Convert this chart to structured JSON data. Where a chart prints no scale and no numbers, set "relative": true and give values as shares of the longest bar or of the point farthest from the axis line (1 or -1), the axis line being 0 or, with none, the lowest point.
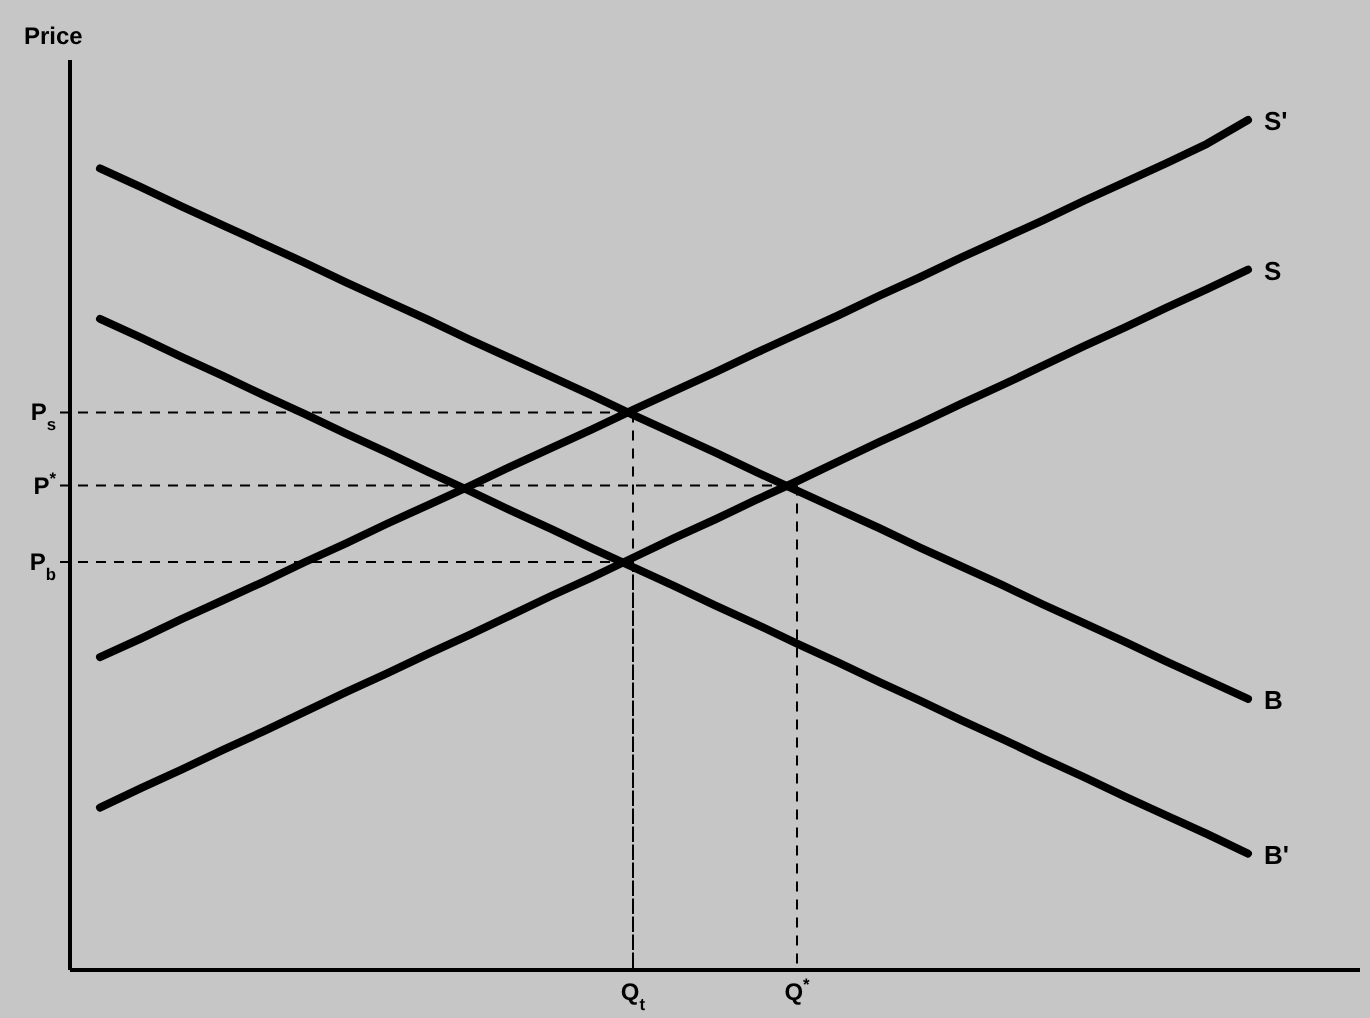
{
  "chart_data": {
    "type": "line",
    "relative": true,
    "ylabel": "Price",
    "categories": [
      null,
      null,
      null,
      null,
      null,
      null,
      null,
      null,
      null,
      null,
      null,
      null,
      null,
      "Q$_{t}$",
      null,
      null,
      null,
      "Q$^{*}$",
      null,
      null,
      null,
      null,
      null,
      null,
      null,
      null,
      null,
      null,
      null
    ],
    "series": [
      {
        "name": "S'",
        "color": "#000000",
        "values": [
          0.368,
          0.39,
          0.413,
          0.435,
          0.457,
          0.48,
          0.502,
          0.525,
          0.547,
          0.569,
          0.592,
          0.614,
          0.636,
          0.659,
          0.681,
          0.703,
          0.726,
          0.748,
          0.77,
          0.793,
          0.815,
          0.838,
          0.86,
          0.882,
          0.905,
          0.927,
          0.949,
          0.972,
          1
        ]
      },
      {
        "name": "S",
        "color": "#000000",
        "values": [
          0.191,
          0.214,
          0.236,
          0.259,
          0.281,
          0.304,
          0.327,
          0.349,
          0.372,
          0.394,
          0.417,
          0.44,
          0.462,
          0.485,
          0.508,
          0.53,
          0.553,
          0.575,
          0.598,
          0.621,
          0.643,
          0.666,
          0.688,
          0.711,
          0.734,
          0.756,
          0.779,
          0.801,
          0.824
        ]
      },
      {
        "name": "B",
        "color": "#000000",
        "values": [
          0.943,
          0.921,
          0.898,
          0.876,
          0.854,
          0.832,
          0.809,
          0.787,
          0.765,
          0.742,
          0.72,
          0.698,
          0.676,
          0.653,
          0.631,
          0.609,
          0.586,
          0.564,
          0.542,
          0.52,
          0.497,
          0.475,
          0.453,
          0.43,
          0.408,
          0.386,
          0.363,
          0.341,
          0.319
        ]
      },
      {
        "name": "B'",
        "color": "#000000",
        "values": [
          0.766,
          0.744,
          0.721,
          0.699,
          0.676,
          0.654,
          0.631,
          0.609,
          0.586,
          0.564,
          0.541,
          0.519,
          0.496,
          0.474,
          0.452,
          0.429,
          0.407,
          0.384,
          0.362,
          0.339,
          0.317,
          0.294,
          0.272,
          0.249,
          0.227,
          0.204,
          0.182,
          0.16,
          0.137
        ]
      }
    ],
    "annotations": [
      {
        "text": "P$_{s}$",
        "x": "Q$_{t}$",
        "y": 0.656
      },
      {
        "text": "P$^{*}$",
        "x": "Q$^{*}$",
        "y": 0.57
      },
      {
        "text": "P$_{b}$",
        "x": "Q$_{t}$",
        "y": 0.48
      }
    ]
  }
}
